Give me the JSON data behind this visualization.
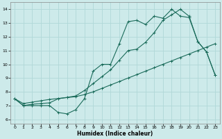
{
  "title": "",
  "xlabel": "Humidex (Indice chaleur)",
  "bg_color": "#cdeaea",
  "grid_color": "#b0d8d8",
  "line_color": "#1a6b5a",
  "xlim": [
    -0.5,
    23.5
  ],
  "ylim": [
    5.7,
    14.5
  ],
  "x_ticks": [
    0,
    1,
    2,
    3,
    4,
    5,
    6,
    7,
    8,
    9,
    10,
    11,
    12,
    13,
    14,
    15,
    16,
    17,
    18,
    19,
    20,
    21,
    22,
    23
  ],
  "y_ticks": [
    6,
    7,
    8,
    9,
    10,
    11,
    12,
    13,
    14
  ],
  "line1_x": [
    0,
    1,
    2,
    3,
    4,
    5,
    6,
    7,
    8,
    9,
    10,
    11,
    12,
    13,
    14,
    15,
    16,
    17,
    18,
    19,
    20,
    21,
    22,
    23
  ],
  "line1_y": [
    7.5,
    7.0,
    7.0,
    7.0,
    7.0,
    6.5,
    6.4,
    6.7,
    7.5,
    9.5,
    10.0,
    10.0,
    11.5,
    13.1,
    13.2,
    12.9,
    13.5,
    13.35,
    14.0,
    13.5,
    13.4,
    11.65,
    10.9,
    9.2
  ],
  "line2_x": [
    0,
    1,
    2,
    3,
    4,
    5,
    6,
    7,
    8,
    9,
    10,
    11,
    12,
    13,
    14,
    15,
    16,
    17,
    18,
    19,
    20,
    21,
    22,
    23
  ],
  "line2_y": [
    7.5,
    7.15,
    7.25,
    7.35,
    7.45,
    7.52,
    7.58,
    7.65,
    7.8,
    8.0,
    8.25,
    8.5,
    8.75,
    9.0,
    9.25,
    9.5,
    9.75,
    10.0,
    10.25,
    10.5,
    10.75,
    11.0,
    11.25,
    11.5
  ],
  "line3_x": [
    0,
    1,
    2,
    3,
    4,
    5,
    6,
    7,
    8,
    9,
    10,
    11,
    12,
    13,
    14,
    15,
    16,
    17,
    18,
    19,
    20,
    21,
    22,
    23
  ],
  "line3_y": [
    7.5,
    7.0,
    7.1,
    7.15,
    7.2,
    7.5,
    7.6,
    7.7,
    8.1,
    8.6,
    9.1,
    9.6,
    10.3,
    11.0,
    11.1,
    11.6,
    12.3,
    13.2,
    13.6,
    14.0,
    13.5,
    11.65,
    10.9,
    9.2
  ]
}
